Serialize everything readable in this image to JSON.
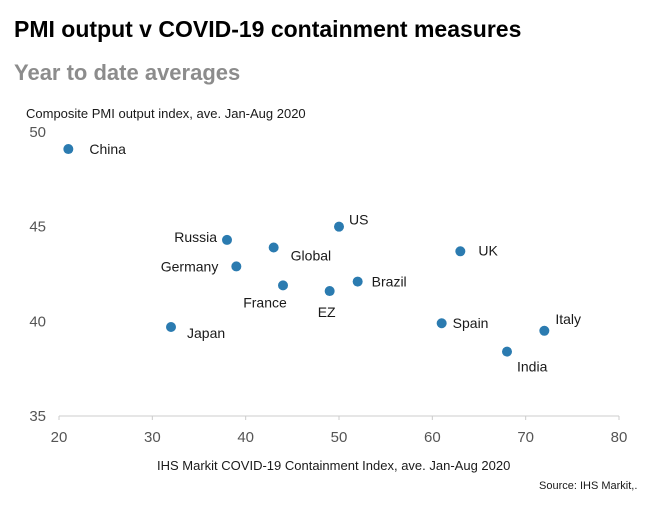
{
  "header": {
    "title": "PMI output v COVID-19 containment measures",
    "subtitle": "Year to date averages"
  },
  "colors": {
    "point": "#2b7bb0",
    "grid": "#cccccc"
  },
  "chart_data": {
    "type": "scatter",
    "ylabel": "Composite  PMI output  index,  ave.  Jan-Aug 2020",
    "xlabel": "IHS Markit  COVID-19  Containment  Index,  ave.  Jan-Aug 2020",
    "xlim": [
      20,
      80
    ],
    "ylim": [
      35,
      50
    ],
    "xticks": [
      "20",
      "30",
      "40",
      "50",
      "60",
      "70",
      "80"
    ],
    "yticks": [
      "35",
      "40",
      "45",
      "50"
    ],
    "grid": false,
    "source": "Source: IHS Markit,.",
    "points": [
      {
        "label": "China",
        "x": 21,
        "y": 49.1
      },
      {
        "label": "Russia",
        "x": 38,
        "y": 44.3
      },
      {
        "label": "US",
        "x": 50,
        "y": 45.0
      },
      {
        "label": "Global",
        "x": 43,
        "y": 43.9
      },
      {
        "label": "UK",
        "x": 63,
        "y": 43.7
      },
      {
        "label": "Germany",
        "x": 39,
        "y": 42.9
      },
      {
        "label": "Brazil",
        "x": 52,
        "y": 42.1
      },
      {
        "label": "France",
        "x": 44,
        "y": 41.9
      },
      {
        "label": "EZ",
        "x": 49,
        "y": 41.6
      },
      {
        "label": "Spain",
        "x": 61,
        "y": 39.9
      },
      {
        "label": "Japan",
        "x": 32,
        "y": 39.7
      },
      {
        "label": "Italy",
        "x": 72,
        "y": 39.5
      },
      {
        "label": "India",
        "x": 68,
        "y": 38.4
      }
    ]
  }
}
